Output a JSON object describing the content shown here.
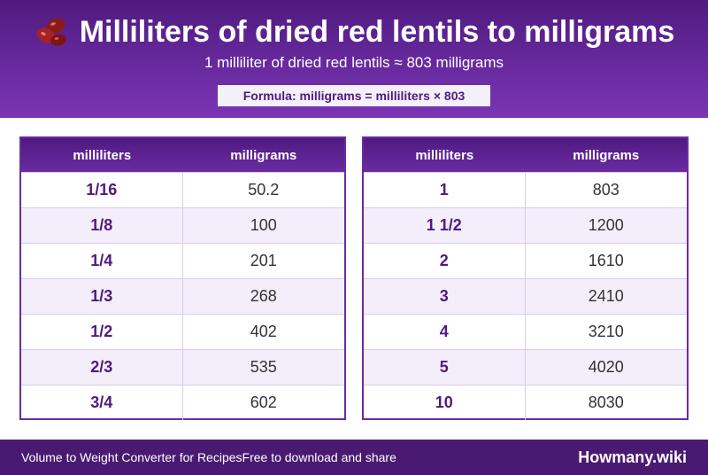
{
  "header": {
    "title": "Milliliters of dried red lentils to milligrams",
    "subtitle": "1 milliliter of dried red lentils ≈ 803 milligrams",
    "formula": "Formula: milligrams = milliliters × 803",
    "icon": "red-lentils-icon"
  },
  "tables": [
    {
      "col1": "milliliters",
      "col2": "milligrams",
      "rows": [
        {
          "ml": "1/16",
          "mg": "50.2"
        },
        {
          "ml": "1/8",
          "mg": "100"
        },
        {
          "ml": "1/4",
          "mg": "201"
        },
        {
          "ml": "1/3",
          "mg": "268"
        },
        {
          "ml": "1/2",
          "mg": "402"
        },
        {
          "ml": "2/3",
          "mg": "535"
        },
        {
          "ml": "3/4",
          "mg": "602"
        }
      ]
    },
    {
      "col1": "milliliters",
      "col2": "milligrams",
      "rows": [
        {
          "ml": "1",
          "mg": "803"
        },
        {
          "ml": "1 1/2",
          "mg": "1200"
        },
        {
          "ml": "2",
          "mg": "1610"
        },
        {
          "ml": "3",
          "mg": "2410"
        },
        {
          "ml": "4",
          "mg": "3210"
        },
        {
          "ml": "5",
          "mg": "4020"
        },
        {
          "ml": "10",
          "mg": "8030"
        }
      ]
    }
  ],
  "footer": {
    "left": "Volume to Weight Converter for Recipes",
    "middle": "Free to download and share",
    "brand": "Howmany.wiki"
  },
  "colors": {
    "header_purple": "#4f1a80",
    "accent_purple": "#6a2ba0",
    "footer_purple": "#4a1a72",
    "row_alt": "#f3eef9"
  }
}
